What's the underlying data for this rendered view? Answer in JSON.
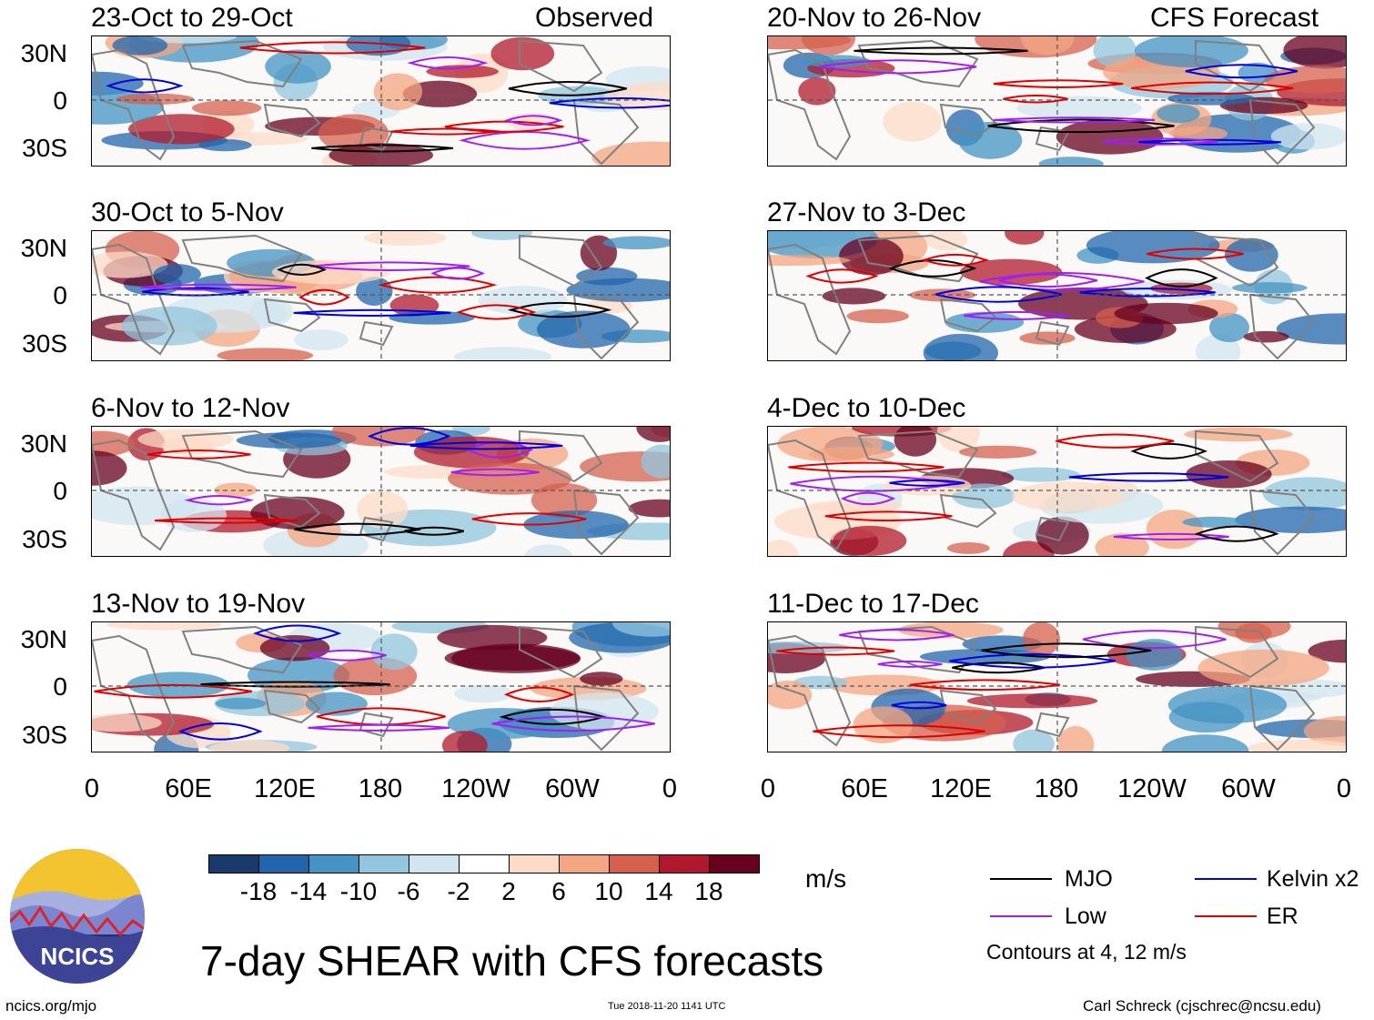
{
  "header": {
    "observed_label": "Observed",
    "forecast_label": "CFS Forecast"
  },
  "panels_left": [
    {
      "title": "23-Oct to 29-Oct"
    },
    {
      "title": "30-Oct to 5-Nov"
    },
    {
      "title": "6-Nov to 12-Nov"
    },
    {
      "title": "13-Nov to 19-Nov"
    }
  ],
  "panels_right": [
    {
      "title": "20-Nov to 26-Nov"
    },
    {
      "title": "27-Nov to 3-Dec"
    },
    {
      "title": "4-Dec to 10-Dec"
    },
    {
      "title": "11-Dec to 17-Dec"
    }
  ],
  "axes": {
    "y_labels": [
      "30N",
      "0",
      "30S"
    ],
    "x_labels": [
      "0",
      "60E",
      "120E",
      "180",
      "120W",
      "60W",
      "0"
    ]
  },
  "colorbar": {
    "labels": [
      "-18",
      "-14",
      "-10",
      "-6",
      "-2",
      "2",
      "6",
      "10",
      "14",
      "18"
    ],
    "colors": [
      "#1a3a6c",
      "#2166ac",
      "#4393c3",
      "#92c5de",
      "#d1e5f0",
      "#ffffff",
      "#fddbc7",
      "#f4a582",
      "#d6604d",
      "#b2182b",
      "#67001f"
    ],
    "units": "m/s"
  },
  "legend": {
    "mjo": "MJO",
    "kelvin": "Kelvin x2",
    "low": "Low",
    "er": "ER",
    "contours_note": "Contours at 4, 12 m/s",
    "colors": {
      "mjo": "#000000",
      "kelvin": "#0000dd",
      "low": "#a020f0",
      "er": "#e00000"
    }
  },
  "footer": {
    "main_title": "7-day SHEAR with CFS forecasts",
    "logo_text": "NCICS",
    "url": "ncics.org/mjo",
    "timestamp": "Tue 2018-11-20 1141 UTC",
    "author": "Carl Schreck (cjschrec@ncsu.edu)"
  }
}
